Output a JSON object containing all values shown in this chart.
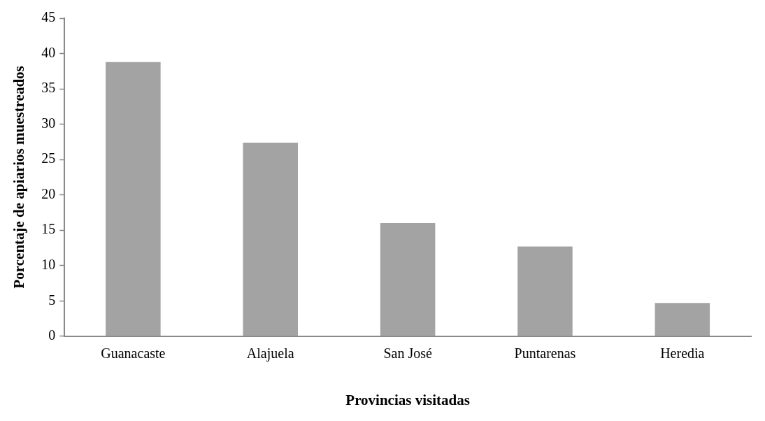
{
  "chart_data": {
    "type": "bar",
    "xlabel": "Provincias visitadas",
    "ylabel": "Porcentaje de apiarios muestreados",
    "categories": [
      "Guanacaste",
      "Alajuela",
      "San José",
      "Puntarenas",
      "Heredia"
    ],
    "values": [
      38.8,
      27.4,
      16.0,
      12.7,
      4.7
    ],
    "color": "#a3a3a3",
    "ylim": [
      0,
      45
    ],
    "yticks": [
      0,
      5,
      10,
      15,
      20,
      25,
      30,
      35,
      40,
      45
    ],
    "grid": false
  }
}
